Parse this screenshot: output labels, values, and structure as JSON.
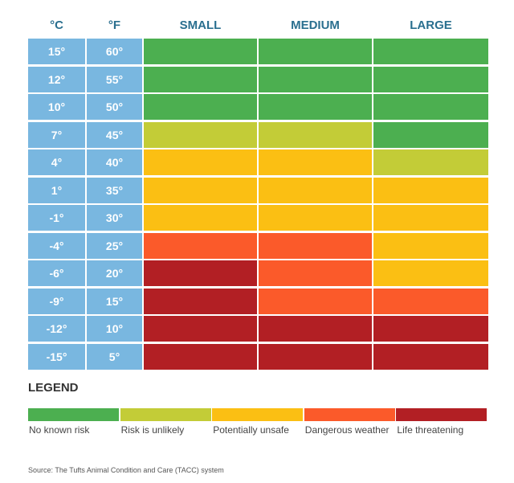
{
  "chart_data": {
    "type": "heatmap",
    "column_headers": [
      "°C",
      "°F",
      "SMALL",
      "MEDIUM",
      "LARGE"
    ],
    "rows": [
      {
        "c": "15°",
        "f": "60°",
        "values": [
          0,
          0,
          0
        ]
      },
      {
        "c": "12°",
        "f": "55°",
        "values": [
          0,
          0,
          0
        ]
      },
      {
        "c": "10°",
        "f": "50°",
        "values": [
          0,
          0,
          0
        ]
      },
      {
        "c": "7°",
        "f": "45°",
        "values": [
          1,
          1,
          0
        ]
      },
      {
        "c": "4°",
        "f": "40°",
        "values": [
          2,
          2,
          1
        ]
      },
      {
        "c": "1°",
        "f": "35°",
        "values": [
          2,
          2,
          2
        ]
      },
      {
        "c": "-1°",
        "f": "30°",
        "values": [
          2,
          2,
          2
        ]
      },
      {
        "c": "-4°",
        "f": "25°",
        "values": [
          3,
          3,
          2
        ]
      },
      {
        "c": "-6°",
        "f": "20°",
        "values": [
          4,
          3,
          2
        ]
      },
      {
        "c": "-9°",
        "f": "15°",
        "values": [
          4,
          3,
          3
        ]
      },
      {
        "c": "-12°",
        "f": "10°",
        "values": [
          4,
          4,
          4
        ]
      },
      {
        "c": "-15°",
        "f": "5°",
        "values": [
          4,
          4,
          4
        ]
      }
    ],
    "legend": {
      "title": "LEGEND",
      "levels": [
        {
          "label": "No known risk",
          "color": "#4caf50"
        },
        {
          "label": "Risk is unlikely",
          "color": "#c3cc37"
        },
        {
          "label": "Potentially unsafe",
          "color": "#fbbf13"
        },
        {
          "label": "Dangerous weather",
          "color": "#fb5a2a"
        },
        {
          "label": "Life threatening",
          "color": "#b21f24"
        }
      ]
    },
    "source": "Source: The Tufts Animal Condition and Care (TACC) system"
  },
  "colors": {
    "temp_cell": "#79b7e0",
    "header_text": "#2a6f8f"
  }
}
